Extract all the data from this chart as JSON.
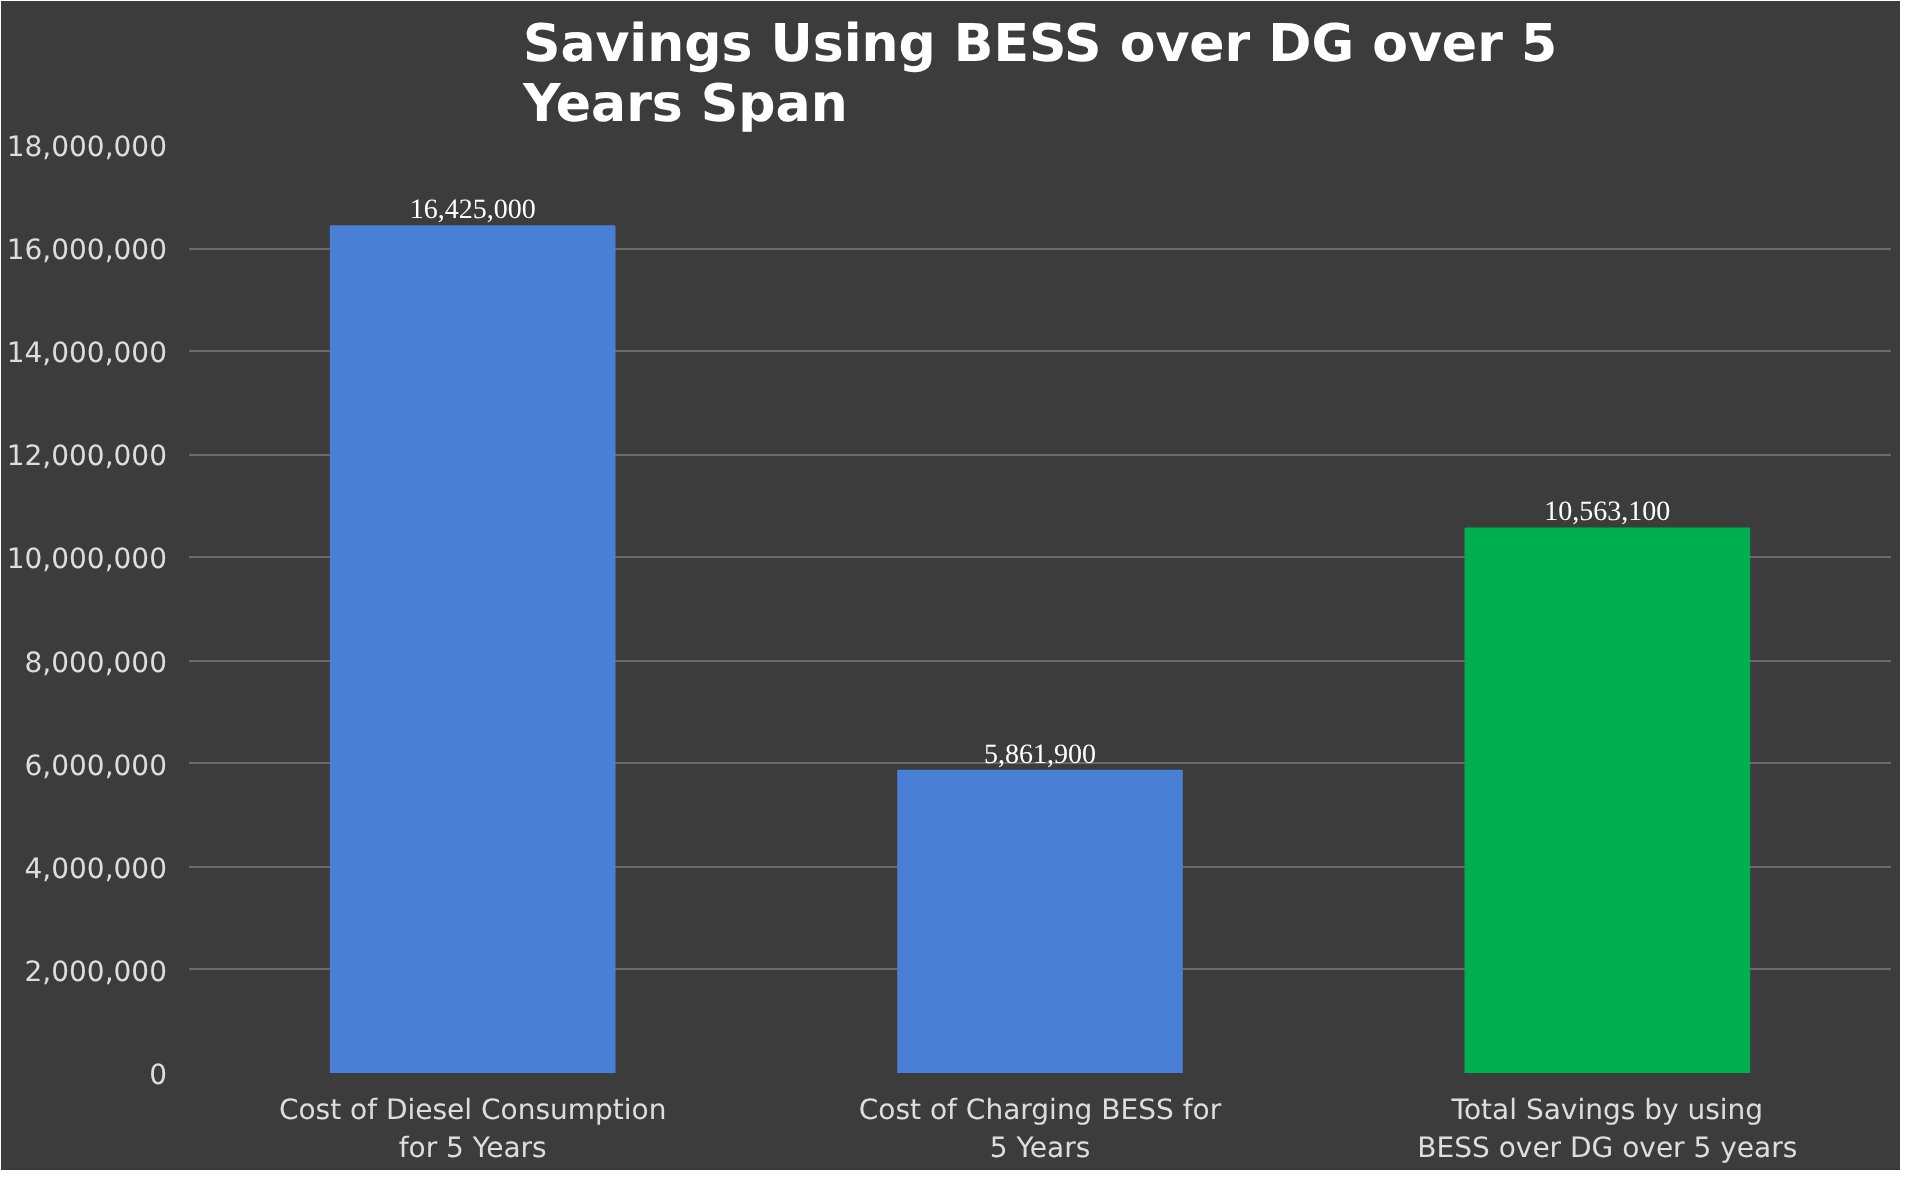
{
  "chart_data": {
    "type": "bar",
    "title": "Savings Using BESS over DG over 5 Years Span",
    "categories": [
      "Cost of Diesel Consumption for 5 Years",
      "Cost of Charging BESS for 5 Years",
      "Total Savings by using BESS over DG over 5 years"
    ],
    "values": [
      16425000,
      5861900,
      10563100
    ],
    "colors": [
      "#4a7fd6",
      "#4a7fd6",
      "#00b050"
    ],
    "ylim": [
      0,
      18000000
    ],
    "yticks": [
      {
        "value": 0,
        "label": "0"
      },
      {
        "value": 2000000,
        "label": "2,000,000"
      },
      {
        "value": 4000000,
        "label": "4,000,000"
      },
      {
        "value": 6000000,
        "label": "6,000,000"
      },
      {
        "value": 8000000,
        "label": "8,000,000"
      },
      {
        "value": 10000000,
        "label": "10,000,000"
      },
      {
        "value": 12000000,
        "label": "12,000,000"
      },
      {
        "value": 14000000,
        "label": "14,000,000"
      },
      {
        "value": 16000000,
        "label": "16,000,000"
      },
      {
        "value": 18000000,
        "label": "18,000,000"
      }
    ],
    "value_labels": [
      "16,425,000",
      "5,861,900",
      "10,563,100"
    ],
    "grid": "y"
  }
}
